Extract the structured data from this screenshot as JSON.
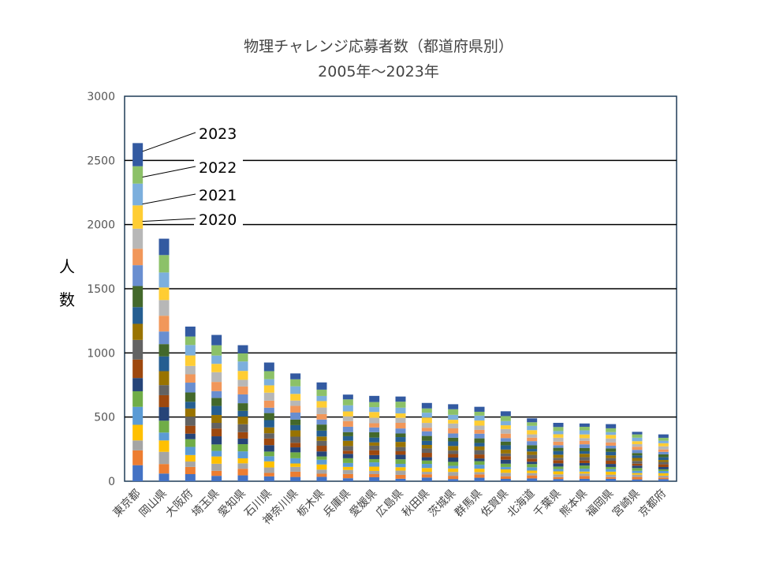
{
  "chart_data": {
    "type": "bar",
    "stacked": true,
    "title": "物理チャレンジ応募者数（都道府県別）",
    "subtitle": "2005年～2023年",
    "xlabel": "",
    "ylabel": "人　数",
    "ylim": [
      0,
      3000
    ],
    "yticks": [
      0,
      500,
      1000,
      1500,
      2000,
      2500,
      3000
    ],
    "grid": true,
    "categories": [
      "東京都",
      "岡山県",
      "大阪府",
      "埼玉県",
      "愛知県",
      "石川県",
      "神奈川県",
      "栃木県",
      "兵庫県",
      "愛媛県",
      "広島県",
      "秋田県",
      "茨城県",
      "群馬県",
      "佐賀県",
      "北海道",
      "千葉県",
      "熊本県",
      "福岡県",
      "宮崎県",
      "京都府"
    ],
    "totals": [
      2635,
      1890,
      1205,
      1140,
      1060,
      925,
      840,
      770,
      675,
      665,
      660,
      610,
      600,
      580,
      545,
      490,
      455,
      450,
      445,
      385,
      365
    ],
    "callouts": [
      {
        "label": "2023",
        "category": "東京都",
        "value": 2570
      },
      {
        "label": "2022",
        "category": "東京都",
        "value": 2370
      },
      {
        "label": "2021",
        "category": "東京都",
        "value": 2160
      },
      {
        "label": "2020",
        "category": "東京都",
        "value": 2025
      }
    ],
    "segment_colors": [
      "#4472c4",
      "#ed7d31",
      "#a5a5a5",
      "#ffc000",
      "#5b9bd5",
      "#70ad47",
      "#264478",
      "#9e480e",
      "#636363",
      "#997300",
      "#255e91",
      "#43682b",
      "#698ed0",
      "#f1975a",
      "#b7b7b7",
      "#ffcd33",
      "#7cafdd",
      "#8cc168",
      "#335aa1"
    ]
  }
}
